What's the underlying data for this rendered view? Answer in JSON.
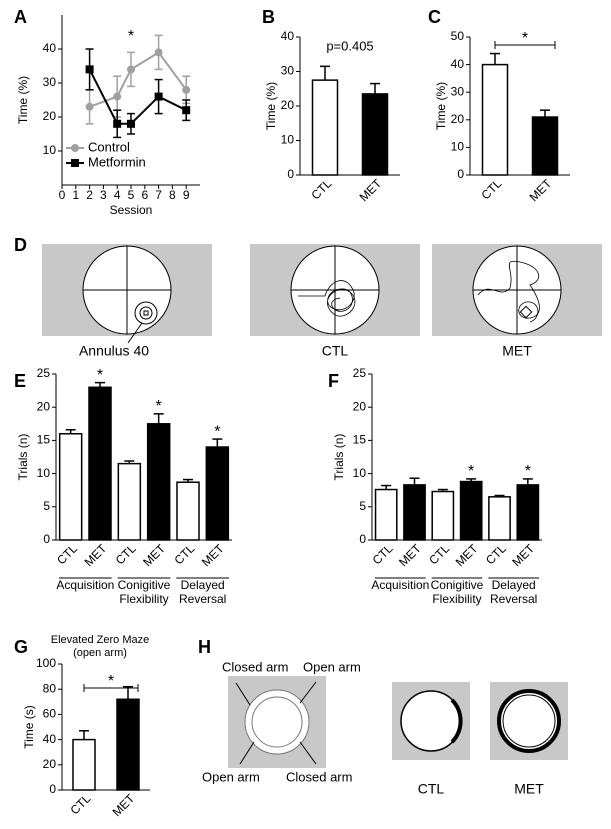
{
  "chart_data": [
    {
      "panel": "A",
      "type": "line",
      "xlabel": "Session",
      "ylabel": "Time (%)",
      "x": [
        2,
        4,
        5,
        7,
        9
      ],
      "xlim": [
        0,
        10
      ],
      "xticks": [
        0,
        1,
        2,
        3,
        4,
        5,
        6,
        7,
        8,
        9
      ],
      "ylim": [
        0,
        50
      ],
      "yticks": [
        10,
        20,
        30,
        40
      ],
      "legend": "lower left",
      "series": [
        {
          "name": "Control",
          "color": "#a0a0a0",
          "marker": "circle",
          "values": [
            23,
            26,
            34,
            39,
            28
          ],
          "errors": [
            5,
            6,
            5,
            5,
            4
          ]
        },
        {
          "name": "Metformin",
          "color": "#000000",
          "marker": "square",
          "values": [
            34,
            18,
            18,
            26,
            22
          ],
          "errors": [
            6,
            4,
            3,
            5,
            3
          ]
        }
      ],
      "annotations": [
        {
          "text": "*",
          "x": 5
        }
      ]
    },
    {
      "panel": "B",
      "type": "bar",
      "ylabel": "Time (%)",
      "categories": [
        "CTL",
        "MET"
      ],
      "values": [
        27.5,
        23.5
      ],
      "errors": [
        4,
        3
      ],
      "colors": [
        "#ffffff",
        "#000000"
      ],
      "ylim": [
        0,
        40
      ],
      "yticks": [
        0,
        10,
        20,
        30,
        40
      ],
      "annotation": "p=0.405"
    },
    {
      "panel": "C",
      "type": "bar",
      "ylabel": "Time (%)",
      "categories": [
        "CTL",
        "MET"
      ],
      "values": [
        40,
        21
      ],
      "errors": [
        4,
        2.5
      ],
      "colors": [
        "#ffffff",
        "#000000"
      ],
      "ylim": [
        0,
        50
      ],
      "yticks": [
        0,
        10,
        20,
        30,
        40,
        50
      ],
      "bracket": "*"
    },
    {
      "panel": "E",
      "type": "bar",
      "ylabel": "Trials (n)",
      "categories": [
        "CTL",
        "MET",
        "CTL",
        "MET",
        "CTL",
        "MET"
      ],
      "values": [
        16,
        23,
        11.5,
        17.5,
        8.7,
        14
      ],
      "errors": [
        0.6,
        0.7,
        0.4,
        1.5,
        0.4,
        1.2
      ],
      "colors": [
        "#ffffff",
        "#000000",
        "#ffffff",
        "#000000",
        "#ffffff",
        "#000000"
      ],
      "significance": [
        null,
        "*",
        null,
        "*",
        null,
        "*"
      ],
      "groups": [
        [
          "Acquisition"
        ],
        [
          "Conigitive",
          "Flexibility"
        ],
        [
          "Delayed",
          "Reversal"
        ]
      ],
      "ylim": [
        0,
        25
      ],
      "yticks": [
        0,
        5,
        10,
        15,
        20,
        25
      ]
    },
    {
      "panel": "F",
      "type": "bar",
      "ylabel": "Trials (n)",
      "categories": [
        "CTL",
        "MET",
        "CTL",
        "MET",
        "CTL",
        "MET"
      ],
      "values": [
        7.6,
        8.3,
        7.3,
        8.8,
        6.5,
        8.3
      ],
      "errors": [
        0.6,
        1,
        0.3,
        0.4,
        0.2,
        0.9
      ],
      "colors": [
        "#ffffff",
        "#000000",
        "#ffffff",
        "#000000",
        "#ffffff",
        "#000000"
      ],
      "significance": [
        null,
        null,
        null,
        "*",
        null,
        "*"
      ],
      "groups": [
        [
          "Acquisition"
        ],
        [
          "Conigitive",
          "Flexibility"
        ],
        [
          "Delayed",
          "Reversal"
        ]
      ],
      "ylim": [
        0,
        25
      ],
      "yticks": [
        0,
        5,
        10,
        15,
        20,
        25
      ]
    },
    {
      "panel": "G",
      "type": "bar",
      "title_lines": [
        "Elevated Zero Maze",
        "(open arm)"
      ],
      "ylabel": "Time (s)",
      "categories": [
        "CTL",
        "MET"
      ],
      "values": [
        40,
        72
      ],
      "errors": [
        7,
        10
      ],
      "colors": [
        "#ffffff",
        "#000000"
      ],
      "ylim": [
        0,
        100
      ],
      "yticks": [
        0,
        20,
        40,
        60,
        80,
        100
      ],
      "bracket": "*"
    }
  ],
  "diagrams": {
    "D": {
      "panel": "D",
      "labels": [
        "Annulus 40",
        "CTL",
        "MET"
      ]
    },
    "H": {
      "panel": "H",
      "arm_labels": [
        "Closed arm",
        "Open arm",
        "Open arm",
        "Closed arm"
      ],
      "labels": [
        "CTL",
        "MET"
      ]
    }
  }
}
